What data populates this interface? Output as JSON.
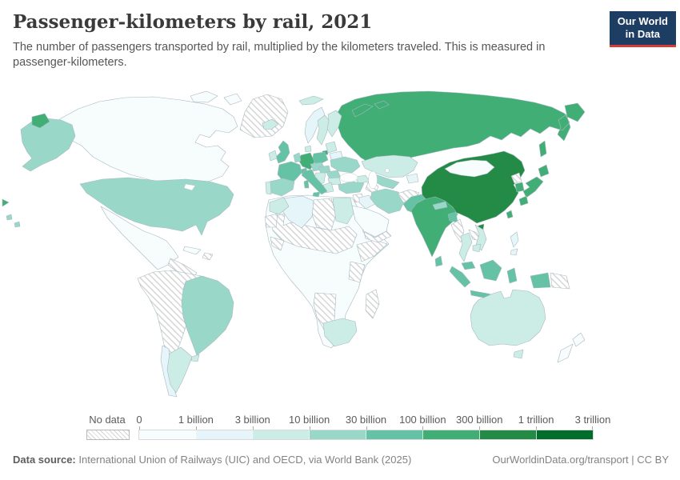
{
  "header": {
    "title": "Passenger-kilometers by rail, 2021",
    "subtitle": "The number of passengers transported by rail, multiplied by the kilometers traveled. This is measured in passenger-kilometers.",
    "logo": {
      "line1": "Our World",
      "line2": "in Data",
      "bg": "#1d3d63",
      "accent": "#d73c34"
    }
  },
  "legend": {
    "no_data_label": "No data",
    "tick_labels": [
      "0",
      "1 billion",
      "3 billion",
      "10 billion",
      "30 billion",
      "100 billion",
      "300 billion",
      "1 trillion",
      "3 trillion"
    ],
    "colors": [
      "#f7fcfd",
      "#e5f5f9",
      "#ccece6",
      "#99d8c9",
      "#66c2a4",
      "#41ae76",
      "#238b45",
      "#006d2c"
    ],
    "no_data_pattern": "diagonal-hatch"
  },
  "footer": {
    "source_label": "Data source:",
    "source_text": " International Union of Railways (UIC) and OECD, via World Bank (2025)",
    "right_text": "OurWorldinData.org/transport | CC BY"
  },
  "chart_data": {
    "type": "choropleth",
    "title": "Passenger-kilometers by rail, 2021",
    "unit": "passenger-kilometers",
    "bin_edges": [
      "0",
      "1 billion",
      "3 billion",
      "10 billion",
      "30 billion",
      "100 billion",
      "300 billion",
      "1 trillion",
      "3 trillion"
    ],
    "band_labels": [
      "0-1 billion",
      "1-3 billion",
      "3-10 billion",
      "10-30 billion",
      "30-100 billion",
      "100-300 billion",
      "300 billion-1 trillion",
      "1-3 trillion"
    ],
    "regions": {
      "Greenland": "no-data",
      "Canada": 0,
      "United States": 3,
      "Mexico": 0,
      "Central America": "no-data",
      "Cuba": 0,
      "Hispaniola": "no-data",
      "Andean South America": "no-data",
      "Brazil": 3,
      "Chile": 1,
      "Argentina": 2,
      "Uruguay": 2,
      "Africa (other)": 0,
      "Sahel and Sudan": "no-data",
      "Libya": "no-data",
      "Algeria": 1,
      "Morocco": 2,
      "Western Sahara": "no-data",
      "Egypt": 2,
      "West Africa (Guinea)": "no-data",
      "Horn of Africa": "no-data",
      "Kenya/Tanzania": "no-data",
      "Angola/Namibia": "no-data",
      "South Africa": 2,
      "Madagascar": "no-data",
      "Iceland": 2,
      "Svalbard": 2,
      "Norway": 1,
      "Sweden": 2,
      "Finland": 2,
      "Denmark": 2,
      "United Kingdom": 4,
      "Ireland": 2,
      "Baltic states": 2,
      "Belarus": 1,
      "Poland": 4,
      "Germany": 5,
      "Netherlands/Belgium": 3,
      "France": 4,
      "Switzerland": 4,
      "Austria/Czechia": 3,
      "Hungary/Slovakia": 3,
      "Ukraine": 3,
      "Romania": 3,
      "Western Balkans": 2,
      "Bulgaria": 2,
      "Greece": 2,
      "Italy": 4,
      "Spain": 3,
      "Portugal": 2,
      "Russia": 5,
      "Russia (Kaliningrad)": 5,
      "Russia (Chukotka)": 5,
      "Kazakhstan": 2,
      "Uzbekistan": 3,
      "Turkmenistan": "no-data",
      "Kyrgyzstan/Tajikistan": 1,
      "Georgia/Azerbaijan": 2,
      "Turkey": 3,
      "Syria": "no-data",
      "Iraq": 1,
      "Iran": 3,
      "Saudi Arabia": 0,
      "Yemen/Oman": "no-data",
      "Afghanistan": "no-data",
      "Pakistan": 4,
      "China": 6,
      "Mongolia": 0,
      "India": 5,
      "Nepal": 3,
      "Bangladesh": 4,
      "Sri Lanka": 4,
      "Myanmar": "no-data",
      "Thailand": 2,
      "Laos": "no-data",
      "Vietnam": 2,
      "Cambodia": 2,
      "Malaysia": 4,
      "Philippines": 1,
      "Indonesia": 4,
      "Papua New Guinea": "no-data",
      "Japan": 5,
      "North Korea": "no-data",
      "South Korea": 5,
      "Taiwan": 5,
      "Australia": 2,
      "New Zealand": 0
    }
  }
}
